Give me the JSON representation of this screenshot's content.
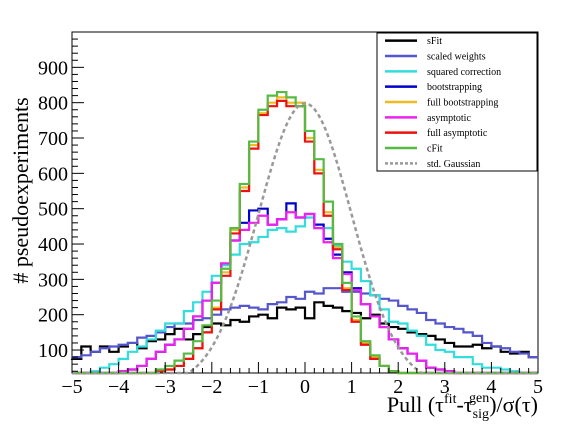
{
  "chart_data": {
    "type": "line",
    "xlabel": "Pull (τ^fit-τ^gen_sig)/σ(τ)",
    "xlabel_parts": {
      "prefix": "Pull (τ",
      "sup1": "fit",
      "mid": "-τ",
      "sub": "sig",
      "sup2": "gen",
      "suffix": ")/σ(τ)"
    },
    "ylabel": "# pseudoexperiments",
    "xlim": [
      -5,
      5
    ],
    "ylim": [
      35,
      1000
    ],
    "x_ticks": [
      -5,
      -4,
      -3,
      -2,
      -1,
      0,
      1,
      2,
      3,
      4,
      5
    ],
    "y_ticks": [
      100,
      200,
      300,
      400,
      500,
      600,
      700,
      800,
      900
    ],
    "bin_edges_start": -5,
    "bin_width": 0.2,
    "legend_position": "top-right",
    "series": [
      {
        "name": "sFit",
        "color": "#000000",
        "dashed": false,
        "values": [
          75,
          110,
          95,
          110,
          95,
          110,
          120,
          105,
          125,
          130,
          145,
          160,
          130,
          145,
          165,
          175,
          170,
          185,
          180,
          195,
          200,
          190,
          220,
          215,
          220,
          190,
          235,
          225,
          220,
          210,
          205,
          190,
          200,
          175,
          165,
          160,
          150,
          145,
          140,
          130,
          120,
          110,
          110,
          115,
          105,
          110,
          95,
          90,
          95,
          80
        ]
      },
      {
        "name": "scaled weights",
        "color": "#5555cc",
        "dashed": false,
        "values": [
          80,
          85,
          95,
          105,
          110,
          115,
          120,
          135,
          140,
          150,
          165,
          175,
          175,
          185,
          190,
          200,
          215,
          220,
          225,
          220,
          215,
          230,
          235,
          250,
          245,
          265,
          260,
          275,
          275,
          265,
          265,
          260,
          255,
          245,
          240,
          225,
          215,
          205,
          185,
          175,
          165,
          160,
          150,
          140,
          120,
          110,
          105,
          95,
          90,
          80
        ]
      },
      {
        "name": "squared correction",
        "color": "#33dddd",
        "dashed": false,
        "values": [
          35,
          35,
          40,
          50,
          60,
          75,
          95,
          110,
          130,
          155,
          175,
          175,
          210,
          235,
          265,
          310,
          340,
          370,
          400,
          405,
          420,
          440,
          445,
          435,
          450,
          475,
          445,
          445,
          395,
          350,
          330,
          295,
          255,
          215,
          180,
          175,
          155,
          140,
          115,
          100,
          95,
          80,
          80,
          60,
          50,
          50,
          45,
          40,
          35,
          35
        ]
      },
      {
        "name": "bootstrapping",
        "color": "#0000cc",
        "dashed": false,
        "values": [
          35,
          35,
          35,
          35,
          35,
          40,
          45,
          55,
          75,
          95,
          115,
          130,
          160,
          195,
          240,
          290,
          345,
          410,
          460,
          495,
          500,
          455,
          470,
          515,
          475,
          485,
          455,
          415,
          370,
          320,
          275,
          230,
          195,
          165,
          130,
          105,
          90,
          70,
          50,
          45,
          40,
          35,
          35,
          35,
          35,
          35,
          35,
          35,
          35,
          35
        ]
      },
      {
        "name": "full bootstrapping",
        "color": "#eebb22",
        "dashed": false,
        "values": [
          35,
          35,
          35,
          35,
          35,
          35,
          35,
          35,
          35,
          40,
          45,
          55,
          75,
          105,
          150,
          220,
          320,
          440,
          560,
          680,
          770,
          800,
          815,
          800,
          800,
          700,
          610,
          490,
          390,
          275,
          185,
          120,
          80,
          55,
          40,
          35,
          35,
          35,
          35,
          35,
          35,
          35,
          35,
          35,
          35,
          35,
          35,
          35,
          35,
          35
        ]
      },
      {
        "name": "asymptotic",
        "color": "#ee22ee",
        "dashed": false,
        "values": [
          35,
          35,
          35,
          35,
          35,
          40,
          45,
          55,
          75,
          95,
          115,
          130,
          160,
          195,
          240,
          290,
          345,
          410,
          440,
          460,
          480,
          455,
          470,
          490,
          475,
          485,
          445,
          405,
          360,
          315,
          270,
          230,
          195,
          165,
          130,
          105,
          90,
          70,
          50,
          45,
          40,
          35,
          35,
          35,
          35,
          35,
          35,
          35,
          35,
          35
        ]
      },
      {
        "name": "full asymptotic",
        "color": "#ee1111",
        "dashed": false,
        "values": [
          35,
          35,
          35,
          35,
          35,
          35,
          35,
          35,
          35,
          40,
          45,
          55,
          75,
          105,
          150,
          215,
          310,
          430,
          550,
          670,
          765,
          790,
          805,
          790,
          790,
          690,
          600,
          480,
          385,
          270,
          180,
          115,
          75,
          55,
          40,
          35,
          35,
          35,
          35,
          35,
          35,
          35,
          35,
          35,
          35,
          35,
          35,
          35,
          35,
          35
        ]
      },
      {
        "name": "cFit",
        "color": "#55bb44",
        "dashed": false,
        "values": [
          35,
          35,
          35,
          35,
          35,
          35,
          35,
          35,
          35,
          45,
          55,
          70,
          90,
          125,
          170,
          240,
          330,
          445,
          570,
          690,
          780,
          820,
          830,
          815,
          790,
          720,
          640,
          520,
          400,
          290,
          195,
          125,
          85,
          55,
          40,
          35,
          35,
          35,
          35,
          35,
          35,
          35,
          35,
          35,
          35,
          35,
          35,
          35,
          35,
          35
        ]
      },
      {
        "name": "std. Gaussian",
        "color": "#999999",
        "dashed": true,
        "values": []
      }
    ],
    "gaussian": {
      "amplitude": 798,
      "mean": 0,
      "sigma": 1
    }
  }
}
